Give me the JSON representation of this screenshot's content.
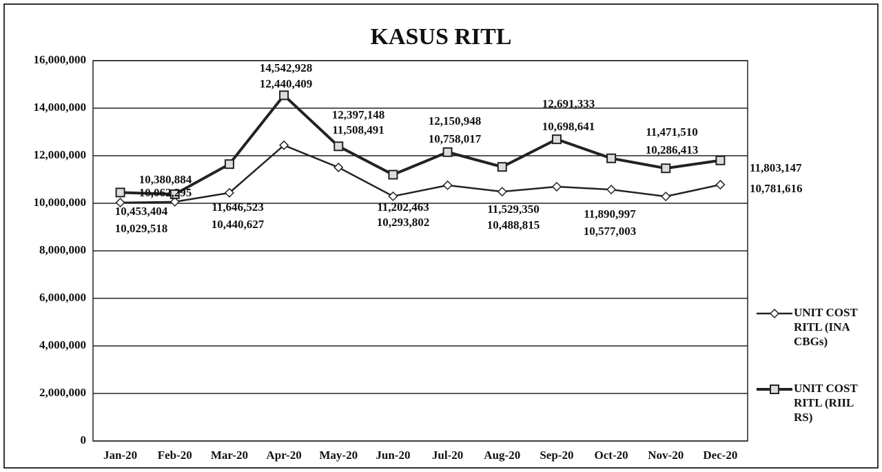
{
  "chart_data": {
    "type": "line",
    "title": "KASUS RITL",
    "categories": [
      "Jan-20",
      "Feb-20",
      "Mar-20",
      "Apr-20",
      "May-20",
      "Jun-20",
      "Jul-20",
      "Aug-20",
      "Sep-20",
      "Oct-20",
      "Nov-20",
      "Dec-20"
    ],
    "series": [
      {
        "name": "UNIT COST RITL (INA CBGs)",
        "color": "#222222",
        "marker": "diamond",
        "values": [
          10029518,
          10062295,
          10440627,
          12440409,
          11508491,
          10293802,
          10758017,
          10488815,
          10698641,
          10577003,
          10286413,
          10781616
        ],
        "value_labels": [
          "10,029,518",
          "10,062,295",
          "10,440,627",
          "12,440,409",
          "11,508,491",
          "10,293,802",
          "10,758,017",
          "10,488,815",
          "10,698,641",
          "10,577,003",
          "10,286,413",
          "10,781,616"
        ]
      },
      {
        "name": "UNIT COST RITL (RIIL RS)",
        "color": "#222222",
        "marker": "square",
        "values": [
          10453404,
          10380884,
          11646523,
          14542928,
          12397148,
          11202463,
          12150948,
          11529350,
          12691333,
          11890997,
          11471510,
          11803147
        ],
        "value_labels": [
          "10,453,404",
          "10,380,884",
          "11,646,523",
          "14,542,928",
          "12,397,148",
          "11,202,463",
          "12,150,948",
          "11,529,350",
          "12,691,333",
          "11,890,997",
          "11,471,510",
          "11,803,147"
        ]
      }
    ],
    "ylim": [
      0,
      16000000
    ],
    "yticks": [
      0,
      {
        "value": 2000000,
        "label": "2,000,000"
      },
      {
        "value": 4000000,
        "label": "4,000,000"
      },
      {
        "value": 6000000,
        "label": "6,000,000"
      },
      {
        "value": 8000000,
        "label": "8,000,000"
      },
      {
        "value": 10000000,
        "label": "10,000,000"
      },
      {
        "value": 12000000,
        "label": "12,000,000"
      },
      {
        "value": 14000000,
        "label": "14,000,000"
      },
      {
        "value": 16000000,
        "label": "16,000,000"
      }
    ],
    "grid": true,
    "legend": "right"
  }
}
